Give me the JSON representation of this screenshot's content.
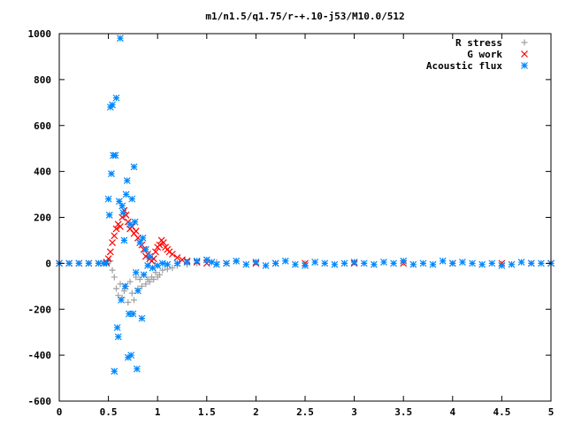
{
  "chart_data": {
    "type": "scatter",
    "title": "m1/n1.5/q1.75/r-+.10-j53/M10.0/512",
    "xlabel": "",
    "ylabel": "",
    "xlim": [
      0,
      5
    ],
    "ylim": [
      -600,
      1000
    ],
    "x_ticks": [
      0,
      0.5,
      1,
      1.5,
      2,
      2.5,
      3,
      3.5,
      4,
      4.5,
      5
    ],
    "x_tick_labels": [
      "0",
      "0.5",
      "1",
      "1.5",
      "2",
      "2.5",
      "3",
      "3.5",
      "4",
      "4.5",
      "5"
    ],
    "y_ticks": [
      -600,
      -400,
      -200,
      0,
      200,
      400,
      600,
      800,
      1000
    ],
    "y_tick_labels": [
      "-600",
      "-400",
      "-200",
      "0",
      "200",
      "400",
      "600",
      "800",
      "1000"
    ],
    "grid": false,
    "legend_position": "top-right",
    "series": [
      {
        "name": "R stress",
        "marker": "plus",
        "color": "#a0a0a0",
        "points": [
          [
            0.0,
            0
          ],
          [
            0.1,
            0
          ],
          [
            0.2,
            0
          ],
          [
            0.3,
            0
          ],
          [
            0.4,
            0
          ],
          [
            0.48,
            0
          ],
          [
            0.52,
            10
          ],
          [
            0.54,
            -30
          ],
          [
            0.56,
            -60
          ],
          [
            0.58,
            -110
          ],
          [
            0.6,
            -140
          ],
          [
            0.62,
            -90
          ],
          [
            0.64,
            -150
          ],
          [
            0.66,
            -120
          ],
          [
            0.68,
            -100
          ],
          [
            0.7,
            -170
          ],
          [
            0.72,
            -80
          ],
          [
            0.74,
            -130
          ],
          [
            0.76,
            -160
          ],
          [
            0.78,
            -60
          ],
          [
            0.8,
            -110
          ],
          [
            0.82,
            -70
          ],
          [
            0.84,
            -100
          ],
          [
            0.86,
            -50
          ],
          [
            0.88,
            -90
          ],
          [
            0.9,
            -70
          ],
          [
            0.92,
            -80
          ],
          [
            0.94,
            -60
          ],
          [
            0.96,
            -70
          ],
          [
            0.98,
            -40
          ],
          [
            1.0,
            -60
          ],
          [
            1.02,
            -50
          ],
          [
            1.05,
            -30
          ],
          [
            1.1,
            -25
          ],
          [
            1.15,
            -20
          ],
          [
            1.2,
            -10
          ],
          [
            1.3,
            -5
          ],
          [
            1.4,
            0
          ],
          [
            1.6,
            5
          ],
          [
            1.8,
            8
          ],
          [
            2.0,
            5
          ],
          [
            2.5,
            0
          ],
          [
            3.0,
            5
          ],
          [
            3.5,
            3
          ],
          [
            4.0,
            0
          ],
          [
            4.5,
            -2
          ],
          [
            5.0,
            0
          ]
        ]
      },
      {
        "name": "G work",
        "marker": "cross",
        "color": "#ff0000",
        "points": [
          [
            0.0,
            0
          ],
          [
            0.1,
            0
          ],
          [
            0.2,
            0
          ],
          [
            0.3,
            0
          ],
          [
            0.4,
            0
          ],
          [
            0.48,
            5
          ],
          [
            0.5,
            20
          ],
          [
            0.52,
            50
          ],
          [
            0.54,
            90
          ],
          [
            0.56,
            120
          ],
          [
            0.58,
            150
          ],
          [
            0.6,
            170
          ],
          [
            0.62,
            160
          ],
          [
            0.64,
            200
          ],
          [
            0.66,
            230
          ],
          [
            0.68,
            210
          ],
          [
            0.7,
            180
          ],
          [
            0.72,
            150
          ],
          [
            0.74,
            160
          ],
          [
            0.76,
            130
          ],
          [
            0.78,
            140
          ],
          [
            0.8,
            110
          ],
          [
            0.82,
            90
          ],
          [
            0.84,
            80
          ],
          [
            0.86,
            60
          ],
          [
            0.88,
            30
          ],
          [
            0.9,
            40
          ],
          [
            0.92,
            20
          ],
          [
            0.94,
            10
          ],
          [
            0.96,
            20
          ],
          [
            0.98,
            50
          ],
          [
            1.0,
            70
          ],
          [
            1.02,
            80
          ],
          [
            1.04,
            100
          ],
          [
            1.06,
            90
          ],
          [
            1.08,
            70
          ],
          [
            1.1,
            60
          ],
          [
            1.12,
            50
          ],
          [
            1.15,
            40
          ],
          [
            1.2,
            25
          ],
          [
            1.25,
            15
          ],
          [
            1.3,
            10
          ],
          [
            1.4,
            5
          ],
          [
            1.5,
            0
          ],
          [
            1.7,
            0
          ],
          [
            2.0,
            0
          ],
          [
            2.2,
            0
          ],
          [
            2.5,
            0
          ],
          [
            3.0,
            0
          ],
          [
            3.5,
            0
          ],
          [
            4.0,
            0
          ],
          [
            4.5,
            0
          ],
          [
            4.8,
            0
          ],
          [
            5.0,
            0
          ]
        ]
      },
      {
        "name": "Acoustic flux",
        "marker": "star",
        "color": "#0088ff",
        "points": [
          [
            0.0,
            0
          ],
          [
            0.1,
            0
          ],
          [
            0.2,
            0
          ],
          [
            0.3,
            0
          ],
          [
            0.4,
            0
          ],
          [
            0.45,
            0
          ],
          [
            0.48,
            0
          ],
          [
            0.5,
            280
          ],
          [
            0.51,
            210
          ],
          [
            0.52,
            680
          ],
          [
            0.53,
            390
          ],
          [
            0.54,
            690
          ],
          [
            0.55,
            470
          ],
          [
            0.56,
            -470
          ],
          [
            0.57,
            470
          ],
          [
            0.58,
            720
          ],
          [
            0.59,
            -280
          ],
          [
            0.6,
            -320
          ],
          [
            0.61,
            270
          ],
          [
            0.62,
            980
          ],
          [
            0.63,
            -160
          ],
          [
            0.64,
            250
          ],
          [
            0.65,
            220
          ],
          [
            0.66,
            100
          ],
          [
            0.67,
            -100
          ],
          [
            0.68,
            300
          ],
          [
            0.69,
            360
          ],
          [
            0.7,
            -410
          ],
          [
            0.71,
            -220
          ],
          [
            0.72,
            170
          ],
          [
            0.73,
            -400
          ],
          [
            0.74,
            280
          ],
          [
            0.75,
            -220
          ],
          [
            0.76,
            420
          ],
          [
            0.77,
            180
          ],
          [
            0.78,
            -40
          ],
          [
            0.79,
            -460
          ],
          [
            0.8,
            -120
          ],
          [
            0.82,
            90
          ],
          [
            0.84,
            -240
          ],
          [
            0.85,
            110
          ],
          [
            0.86,
            -50
          ],
          [
            0.88,
            60
          ],
          [
            0.9,
            -10
          ],
          [
            0.92,
            30
          ],
          [
            0.95,
            -20
          ],
          [
            1.0,
            -10
          ],
          [
            1.05,
            0
          ],
          [
            1.1,
            -5
          ],
          [
            1.2,
            0
          ],
          [
            1.3,
            5
          ],
          [
            1.4,
            10
          ],
          [
            1.5,
            15
          ],
          [
            1.55,
            5
          ],
          [
            1.6,
            -5
          ],
          [
            1.7,
            0
          ],
          [
            1.8,
            10
          ],
          [
            1.9,
            -5
          ],
          [
            2.0,
            5
          ],
          [
            2.1,
            -10
          ],
          [
            2.2,
            0
          ],
          [
            2.3,
            10
          ],
          [
            2.4,
            -5
          ],
          [
            2.5,
            -10
          ],
          [
            2.6,
            5
          ],
          [
            2.7,
            0
          ],
          [
            2.8,
            -5
          ],
          [
            2.9,
            0
          ],
          [
            3.0,
            5
          ],
          [
            3.1,
            0
          ],
          [
            3.2,
            -5
          ],
          [
            3.3,
            5
          ],
          [
            3.4,
            0
          ],
          [
            3.5,
            10
          ],
          [
            3.6,
            -5
          ],
          [
            3.7,
            0
          ],
          [
            3.8,
            -5
          ],
          [
            3.9,
            10
          ],
          [
            4.0,
            0
          ],
          [
            4.1,
            5
          ],
          [
            4.2,
            0
          ],
          [
            4.3,
            -5
          ],
          [
            4.4,
            0
          ],
          [
            4.5,
            -10
          ],
          [
            4.6,
            -5
          ],
          [
            4.7,
            5
          ],
          [
            4.8,
            0
          ],
          [
            4.9,
            0
          ],
          [
            5.0,
            0
          ]
        ]
      }
    ]
  }
}
